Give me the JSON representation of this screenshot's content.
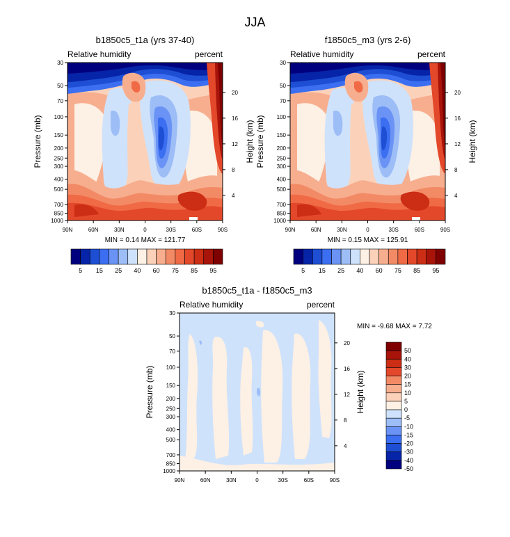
{
  "figure": {
    "title": "JJA"
  },
  "chart_data": [
    {
      "type": "heatmap",
      "title": "b1850c5_t1a (yrs 37-40)",
      "left_label": "Relative humidity",
      "right_label": "percent",
      "xlabel": "",
      "ylabel": "Pressure (mb)",
      "y2label": "Height (km)",
      "x_ticks": [
        "90N",
        "60N",
        "30N",
        "0",
        "30S",
        "60S",
        "90S"
      ],
      "y_ticks": [
        30,
        50,
        70,
        100,
        150,
        200,
        250,
        300,
        400,
        500,
        700,
        850,
        1000
      ],
      "y_tick_labels": [
        "30",
        "50",
        "70",
        "100",
        "150",
        "200",
        "250",
        "300",
        "400",
        "500",
        "700",
        "850",
        "1000"
      ],
      "y2_ticks": [
        4,
        8,
        12,
        16,
        20
      ],
      "y2_tick_labels": [
        "4",
        "8",
        "12",
        "16",
        "20"
      ],
      "ylim": [
        30,
        1000
      ],
      "stats_text": "MIN =   0.14  MAX = 121.77",
      "min": 0.14,
      "max": 121.77,
      "colorbar": {
        "orientation": "horizontal",
        "colors": [
          "#00007f",
          "#0624a8",
          "#1d4ed4",
          "#3b6ef0",
          "#6a93f5",
          "#9dbdf7",
          "#cfe2fb",
          "#fdf0e4",
          "#fbd2b9",
          "#f7ae8f",
          "#f38a66",
          "#ef6a45",
          "#e3482a",
          "#cc2d15",
          "#a8140a",
          "#7f0000"
        ],
        "labels": [
          "5",
          "15",
          "25",
          "40",
          "60",
          "75",
          "85",
          "95"
        ]
      }
    },
    {
      "type": "heatmap",
      "title": "f1850c5_m3 (yrs 2-6)",
      "left_label": "Relative humidity",
      "right_label": "percent",
      "xlabel": "",
      "ylabel": "Pressure (mb)",
      "y2label": "Height (km)",
      "x_ticks": [
        "90N",
        "60N",
        "30N",
        "0",
        "30S",
        "60S",
        "90S"
      ],
      "y_ticks": [
        30,
        50,
        70,
        100,
        150,
        200,
        250,
        300,
        400,
        500,
        700,
        850,
        1000
      ],
      "y_tick_labels": [
        "30",
        "50",
        "70",
        "100",
        "150",
        "200",
        "250",
        "300",
        "400",
        "500",
        "700",
        "850",
        "1000"
      ],
      "y2_ticks": [
        4,
        8,
        12,
        16,
        20
      ],
      "y2_tick_labels": [
        "4",
        "8",
        "12",
        "16",
        "20"
      ],
      "ylim": [
        30,
        1000
      ],
      "stats_text": "MIN =   0.15  MAX = 125.91",
      "min": 0.15,
      "max": 125.91,
      "colorbar": {
        "orientation": "horizontal",
        "colors": [
          "#00007f",
          "#0624a8",
          "#1d4ed4",
          "#3b6ef0",
          "#6a93f5",
          "#9dbdf7",
          "#cfe2fb",
          "#fdf0e4",
          "#fbd2b9",
          "#f7ae8f",
          "#f38a66",
          "#ef6a45",
          "#e3482a",
          "#cc2d15",
          "#a8140a",
          "#7f0000"
        ],
        "labels": [
          "5",
          "15",
          "25",
          "40",
          "60",
          "75",
          "85",
          "95"
        ]
      }
    },
    {
      "type": "heatmap",
      "title": "b1850c5_t1a - f1850c5_m3",
      "left_label": "Relative humidity",
      "right_label": "percent",
      "xlabel": "",
      "ylabel": "Pressure (mb)",
      "y2label": "Height (km)",
      "x_ticks": [
        "90N",
        "60N",
        "30N",
        "0",
        "30S",
        "60S",
        "90S"
      ],
      "y_ticks": [
        30,
        50,
        70,
        100,
        150,
        200,
        250,
        300,
        400,
        500,
        700,
        850,
        1000
      ],
      "y_tick_labels": [
        "30",
        "50",
        "70",
        "100",
        "150",
        "200",
        "250",
        "300",
        "400",
        "500",
        "700",
        "850",
        "1000"
      ],
      "y2_ticks": [
        4,
        8,
        12,
        16,
        20
      ],
      "y2_tick_labels": [
        "4",
        "8",
        "12",
        "16",
        "20"
      ],
      "ylim": [
        30,
        1000
      ],
      "stats_text": "MIN =  -9.68  MAX =   7.72",
      "min": -9.68,
      "max": 7.72,
      "colorbar": {
        "orientation": "vertical",
        "colors": [
          "#7f0000",
          "#a8140a",
          "#cc2d15",
          "#e3482a",
          "#f38a66",
          "#f7ae8f",
          "#fbd2b9",
          "#fdf0e4",
          "#cfe2fb",
          "#9dbdf7",
          "#6a93f5",
          "#3b6ef0",
          "#1d4ed4",
          "#0624a8",
          "#00007f"
        ],
        "labels": [
          "50",
          "40",
          "30",
          "20",
          "15",
          "10",
          "5",
          "0",
          "-5",
          "-10",
          "-15",
          "-20",
          "-30",
          "-40",
          "-50"
        ]
      }
    }
  ]
}
